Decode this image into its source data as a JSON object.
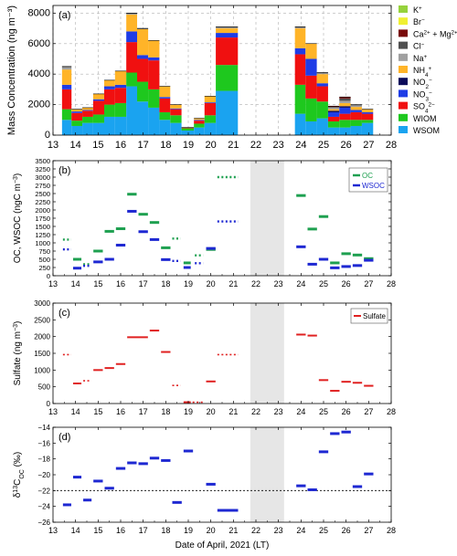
{
  "chart_data": [
    {
      "panel": "(a)",
      "type": "bar",
      "stacked": true,
      "ylabel": "Mass Concentration (ng m⁻³)",
      "ylim": [
        0,
        8500
      ],
      "yticks": [
        0,
        2000,
        4000,
        6000,
        8000
      ],
      "xlim": [
        13,
        28
      ],
      "xticks": [
        13,
        14,
        15,
        16,
        17,
        18,
        19,
        20,
        21,
        22,
        23,
        24,
        25,
        26,
        27,
        28
      ],
      "grid": true,
      "legend": [
        "K⁺",
        "Br⁻",
        "Ca²⁺ + Mg²⁺",
        "Cl⁻",
        "Na⁺",
        "NH₄⁺",
        "NO₂⁻",
        "NO₃⁻",
        "SO₄²⁻",
        "WIOM",
        "WSOM"
      ],
      "colors": {
        "WSOM": "#1aa3f0",
        "WIOM": "#1ec81e",
        "SO4": "#f01010",
        "NO3": "#1e3ce6",
        "NO2": "#0a0a5a",
        "NH4": "#ffb428",
        "Na": "#a0a0a0",
        "Cl": "#505050",
        "CaMg": "#780a0a",
        "Br": "#f0f032",
        "K": "#96d23c"
      },
      "bars": [
        {
          "x0": 13.4,
          "x1": 13.82,
          "WSOM": 1000,
          "WIOM": 700,
          "SO4": 1300,
          "NO3": 300,
          "NO2": 0,
          "NH4": 1000,
          "Na": 150,
          "Cl": 50,
          "CaMg": 0,
          "Br": 0,
          "K": 0
        },
        {
          "x0": 13.82,
          "x1": 14.3,
          "WSOM": 600,
          "WIOM": 350,
          "SO4": 500,
          "NO3": 100,
          "NO2": 0,
          "NH4": 150,
          "Na": 0,
          "Cl": 0,
          "CaMg": 0,
          "Br": 0,
          "K": 0
        },
        {
          "x0": 14.3,
          "x1": 14.78,
          "WSOM": 800,
          "WIOM": 400,
          "SO4": 400,
          "NO3": 50,
          "NO2": 0,
          "NH4": 150,
          "Na": 0,
          "Cl": 0,
          "CaMg": 0,
          "Br": 0,
          "K": 0
        },
        {
          "x0": 14.78,
          "x1": 15.27,
          "WSOM": 800,
          "WIOM": 550,
          "SO4": 900,
          "NO3": 100,
          "NO2": 0,
          "NH4": 350,
          "Na": 0,
          "Cl": 0,
          "CaMg": 0,
          "Br": 0,
          "K": 0
        },
        {
          "x0": 15.27,
          "x1": 15.75,
          "WSOM": 1200,
          "WIOM": 800,
          "SO4": 1000,
          "NO3": 200,
          "NO2": 0,
          "NH4": 400,
          "Na": 0,
          "Cl": 0,
          "CaMg": 0,
          "Br": 0,
          "K": 0
        },
        {
          "x0": 15.75,
          "x1": 16.25,
          "WSOM": 1200,
          "WIOM": 900,
          "SO4": 1000,
          "NO3": 200,
          "NO2": 0,
          "NH4": 900,
          "Na": 0,
          "Cl": 0,
          "CaMg": 0,
          "Br": 0,
          "K": 0
        },
        {
          "x0": 16.25,
          "x1": 16.73,
          "WSOM": 3200,
          "WIOM": 900,
          "SO4": 2000,
          "NO3": 700,
          "NO2": 0,
          "NH4": 1100,
          "Na": 50,
          "Cl": 50,
          "CaMg": 0,
          "Br": 0,
          "K": 0
        },
        {
          "x0": 16.73,
          "x1": 17.22,
          "WSOM": 2200,
          "WIOM": 1300,
          "SO4": 1500,
          "NO3": 250,
          "NO2": 0,
          "NH4": 1700,
          "Na": 0,
          "Cl": 50,
          "CaMg": 0,
          "Br": 0,
          "K": 0
        },
        {
          "x0": 17.22,
          "x1": 17.72,
          "WSOM": 1800,
          "WIOM": 1200,
          "SO4": 1900,
          "NO3": 200,
          "NO2": 0,
          "NH4": 1100,
          "Na": 0,
          "Cl": 0,
          "CaMg": 0,
          "Br": 0,
          "K": 0
        },
        {
          "x0": 17.72,
          "x1": 18.2,
          "WSOM": 1000,
          "WIOM": 500,
          "SO4": 900,
          "NO3": 100,
          "NO2": 0,
          "NH4": 700,
          "Na": 0,
          "Cl": 0,
          "CaMg": 0,
          "Br": 0,
          "K": 0
        },
        {
          "x0": 18.2,
          "x1": 18.7,
          "WSOM": 800,
          "WIOM": 500,
          "SO4": 400,
          "NO3": 50,
          "NO2": 0,
          "NH4": 250,
          "Na": 0,
          "Cl": 0,
          "CaMg": 0,
          "Br": 0,
          "K": 0
        },
        {
          "x0": 18.7,
          "x1": 19.25,
          "WSOM": 300,
          "WIOM": 150,
          "SO4": 50,
          "NO3": 0,
          "NO2": 0,
          "NH4": 0,
          "Na": 0,
          "Cl": 0,
          "CaMg": 0,
          "Br": 0,
          "K": 0
        },
        {
          "x0": 19.25,
          "x1": 19.72,
          "WSOM": 500,
          "WIOM": 250,
          "SO4": 200,
          "NO3": 50,
          "NO2": 0,
          "NH4": 100,
          "Na": 0,
          "Cl": 0,
          "CaMg": 0,
          "Br": 0,
          "K": 0
        },
        {
          "x0": 19.72,
          "x1": 20.22,
          "WSOM": 800,
          "WIOM": 500,
          "SO4": 800,
          "NO3": 50,
          "NO2": 0,
          "NH4": 400,
          "Na": 0,
          "Cl": 0,
          "CaMg": 0,
          "Br": 0,
          "K": 0
        },
        {
          "x0": 20.22,
          "x1": 21.2,
          "WSOM": 2900,
          "WIOM": 1700,
          "SO4": 1800,
          "NO3": 300,
          "NO2": 0,
          "NH4": 300,
          "Na": 50,
          "Cl": 50,
          "CaMg": 0,
          "Br": 0,
          "K": 0
        },
        {
          "x0": 23.73,
          "x1": 24.2,
          "WSOM": 1400,
          "WIOM": 1900,
          "SO4": 2000,
          "NO3": 400,
          "NO2": 0,
          "NH4": 1300,
          "Na": 50,
          "Cl": 50,
          "CaMg": 0,
          "Br": 0,
          "K": 0
        },
        {
          "x0": 24.2,
          "x1": 24.7,
          "WSOM": 900,
          "WIOM": 1500,
          "SO4": 1500,
          "NO3": 1100,
          "NO2": 0,
          "NH4": 1000,
          "Na": 0,
          "Cl": 0,
          "CaMg": 0,
          "Br": 0,
          "K": 0
        },
        {
          "x0": 24.7,
          "x1": 25.2,
          "WSOM": 1100,
          "WIOM": 1100,
          "SO4": 1000,
          "NO3": 200,
          "NO2": 0,
          "NH4": 600,
          "Na": 50,
          "Cl": 50,
          "CaMg": 0,
          "Br": 0,
          "K": 0
        },
        {
          "x0": 25.2,
          "x1": 25.7,
          "WSOM": 500,
          "WIOM": 400,
          "SO4": 300,
          "NO3": 300,
          "NO2": 100,
          "NH4": 100,
          "Na": 100,
          "Cl": 50,
          "CaMg": 50,
          "Br": 0,
          "K": 0
        },
        {
          "x0": 25.7,
          "x1": 26.2,
          "WSOM": 500,
          "WIOM": 500,
          "SO4": 400,
          "NO3": 400,
          "NO2": 100,
          "NH4": 200,
          "Na": 150,
          "Cl": 150,
          "CaMg": 100,
          "Br": 0,
          "K": 0
        },
        {
          "x0": 26.2,
          "x1": 26.7,
          "WSOM": 600,
          "WIOM": 400,
          "SO4": 500,
          "NO3": 150,
          "NO2": 0,
          "NH4": 200,
          "Na": 100,
          "Cl": 50,
          "CaMg": 0,
          "Br": 0,
          "K": 0
        },
        {
          "x0": 26.7,
          "x1": 27.2,
          "WSOM": 800,
          "WIOM": 200,
          "SO4": 400,
          "NO3": 100,
          "NO2": 0,
          "NH4": 200,
          "Na": 0,
          "Cl": 0,
          "CaMg": 0,
          "Br": 0,
          "K": 0
        }
      ]
    },
    {
      "panel": "(b)",
      "type": "line",
      "ylabel": "OC, WSOC (ngC m⁻³)",
      "ylim": [
        0,
        3500
      ],
      "yticks": [
        0,
        250,
        500,
        750,
        1000,
        1250,
        1500,
        1750,
        2000,
        2250,
        2500,
        2750,
        3000,
        3250,
        3500
      ],
      "xlim": [
        13,
        28
      ],
      "xticks": [
        13,
        14,
        15,
        16,
        17,
        18,
        19,
        20,
        21,
        22,
        23,
        24,
        25,
        26,
        27,
        28
      ],
      "legend_position": "top-right",
      "shade": [
        21.75,
        23.25
      ],
      "series": [
        {
          "name": "OC",
          "color": "#1ea050",
          "segments": [
            {
              "x0": 13.4,
              "x1": 13.85,
              "y": 1100,
              "dashed": true
            },
            {
              "x0": 13.85,
              "x1": 14.3,
              "y": 500
            },
            {
              "x0": 14.3,
              "x1": 14.7,
              "y": 350,
              "dashed": true
            },
            {
              "x0": 14.75,
              "x1": 15.25,
              "y": 750
            },
            {
              "x0": 15.25,
              "x1": 15.75,
              "y": 1350
            },
            {
              "x0": 15.75,
              "x1": 16.25,
              "y": 1430
            },
            {
              "x0": 16.25,
              "x1": 16.75,
              "y": 2480
            },
            {
              "x0": 16.75,
              "x1": 17.25,
              "y": 1870
            },
            {
              "x0": 17.25,
              "x1": 17.75,
              "y": 1620
            },
            {
              "x0": 17.75,
              "x1": 18.25,
              "y": 850
            },
            {
              "x0": 18.25,
              "x1": 18.7,
              "y": 1130,
              "dashed": true
            },
            {
              "x0": 18.75,
              "x1": 19.15,
              "y": 390
            },
            {
              "x0": 19.25,
              "x1": 19.7,
              "y": 620,
              "dashed": true
            },
            {
              "x0": 19.75,
              "x1": 20.25,
              "y": 800
            },
            {
              "x0": 20.25,
              "x1": 21.25,
              "y": 3000,
              "dashed": true
            },
            {
              "x0": 23.75,
              "x1": 24.25,
              "y": 2440
            },
            {
              "x0": 24.25,
              "x1": 24.75,
              "y": 1420
            },
            {
              "x0": 24.75,
              "x1": 25.25,
              "y": 1800
            },
            {
              "x0": 25.25,
              "x1": 25.75,
              "y": 390
            },
            {
              "x0": 25.75,
              "x1": 26.25,
              "y": 670
            },
            {
              "x0": 26.25,
              "x1": 26.75,
              "y": 630
            },
            {
              "x0": 26.75,
              "x1": 27.25,
              "y": 520
            }
          ]
        },
        {
          "name": "WSOC",
          "color": "#1e28d2",
          "segments": [
            {
              "x0": 13.4,
              "x1": 13.85,
              "y": 800,
              "dashed": true
            },
            {
              "x0": 13.85,
              "x1": 14.3,
              "y": 230
            },
            {
              "x0": 14.3,
              "x1": 14.7,
              "y": 300,
              "dashed": true
            },
            {
              "x0": 14.75,
              "x1": 15.25,
              "y": 420
            },
            {
              "x0": 15.25,
              "x1": 15.75,
              "y": 500
            },
            {
              "x0": 15.75,
              "x1": 16.25,
              "y": 930
            },
            {
              "x0": 16.25,
              "x1": 16.75,
              "y": 1960
            },
            {
              "x0": 16.75,
              "x1": 17.25,
              "y": 1340
            },
            {
              "x0": 17.25,
              "x1": 17.75,
              "y": 1100
            },
            {
              "x0": 17.75,
              "x1": 18.25,
              "y": 490
            },
            {
              "x0": 18.25,
              "x1": 18.7,
              "y": 450,
              "dashed": true
            },
            {
              "x0": 18.75,
              "x1": 19.15,
              "y": 250
            },
            {
              "x0": 19.25,
              "x1": 19.7,
              "y": 380,
              "dashed": true
            },
            {
              "x0": 19.75,
              "x1": 20.25,
              "y": 830
            },
            {
              "x0": 20.25,
              "x1": 21.25,
              "y": 1650,
              "dashed": true
            },
            {
              "x0": 23.75,
              "x1": 24.25,
              "y": 880
            },
            {
              "x0": 24.25,
              "x1": 24.75,
              "y": 350
            },
            {
              "x0": 24.75,
              "x1": 25.25,
              "y": 500
            },
            {
              "x0": 25.25,
              "x1": 25.75,
              "y": 240
            },
            {
              "x0": 25.75,
              "x1": 26.25,
              "y": 280
            },
            {
              "x0": 26.25,
              "x1": 26.75,
              "y": 310
            },
            {
              "x0": 26.75,
              "x1": 27.25,
              "y": 470
            }
          ]
        }
      ]
    },
    {
      "panel": "(c)",
      "type": "line",
      "ylabel": "Sulfate (ng m⁻³)",
      "ylim": [
        0,
        3000
      ],
      "yticks": [
        0,
        500,
        1000,
        1500,
        2000,
        2500,
        3000
      ],
      "xlim": [
        13,
        28
      ],
      "xticks": [
        13,
        14,
        15,
        16,
        17,
        18,
        19,
        20,
        21,
        22,
        23,
        24,
        25,
        26,
        27,
        28
      ],
      "legend_position": "top-right",
      "shade": [
        21.75,
        23.25
      ],
      "series": [
        {
          "name": "Sulfate",
          "color": "#e02020",
          "segments": [
            {
              "x0": 13.4,
              "x1": 13.85,
              "y": 1460,
              "dashed": true
            },
            {
              "x0": 13.85,
              "x1": 14.3,
              "y": 600
            },
            {
              "x0": 14.3,
              "x1": 14.7,
              "y": 680,
              "dashed": true
            },
            {
              "x0": 14.75,
              "x1": 15.25,
              "y": 1000
            },
            {
              "x0": 15.25,
              "x1": 15.75,
              "y": 1060
            },
            {
              "x0": 15.75,
              "x1": 16.25,
              "y": 1180
            },
            {
              "x0": 16.25,
              "x1": 17.25,
              "y": 1980
            },
            {
              "x0": 17.25,
              "x1": 17.75,
              "y": 2180
            },
            {
              "x0": 17.75,
              "x1": 18.25,
              "y": 1540
            },
            {
              "x0": 18.25,
              "x1": 18.7,
              "y": 540,
              "dashed": true
            },
            {
              "x0": 18.75,
              "x1": 19.15,
              "y": 40
            },
            {
              "x0": 19.15,
              "x1": 19.7,
              "y": 40,
              "dashed": true
            },
            {
              "x0": 19.75,
              "x1": 20.25,
              "y": 660
            },
            {
              "x0": 20.25,
              "x1": 21.25,
              "y": 1460,
              "dashed": true
            },
            {
              "x0": 23.75,
              "x1": 24.25,
              "y": 2060
            },
            {
              "x0": 24.25,
              "x1": 24.75,
              "y": 2030
            },
            {
              "x0": 24.75,
              "x1": 25.25,
              "y": 700
            },
            {
              "x0": 25.25,
              "x1": 25.75,
              "y": 380
            },
            {
              "x0": 25.75,
              "x1": 26.25,
              "y": 650
            },
            {
              "x0": 26.25,
              "x1": 26.75,
              "y": 620
            },
            {
              "x0": 26.75,
              "x1": 27.25,
              "y": 530
            }
          ]
        }
      ]
    },
    {
      "panel": "(d)",
      "type": "line",
      "ylabel": "δ¹³C_OC (‰)",
      "ylim": [
        -26,
        -14
      ],
      "yticks": [
        -26,
        -24,
        -22,
        -20,
        -18,
        -16,
        -14
      ],
      "xlim": [
        13,
        28
      ],
      "xticks": [
        13,
        14,
        15,
        16,
        17,
        18,
        19,
        20,
        21,
        22,
        23,
        24,
        25,
        26,
        27,
        28
      ],
      "xlabel": "Date of April, 2021 (LT)",
      "shade": [
        21.75,
        23.25
      ],
      "reference_line": -22.0,
      "series": [
        {
          "name": "",
          "color": "#1e28d2",
          "segments": [
            {
              "x0": 13.4,
              "x1": 13.85,
              "y": -23.8
            },
            {
              "x0": 13.85,
              "x1": 14.3,
              "y": -20.3
            },
            {
              "x0": 14.3,
              "x1": 14.75,
              "y": -23.2
            },
            {
              "x0": 14.75,
              "x1": 15.25,
              "y": -20.8
            },
            {
              "x0": 15.25,
              "x1": 15.75,
              "y": -21.7
            },
            {
              "x0": 15.75,
              "x1": 16.25,
              "y": -19.2
            },
            {
              "x0": 16.25,
              "x1": 16.75,
              "y": -18.5
            },
            {
              "x0": 16.75,
              "x1": 17.25,
              "y": -18.6
            },
            {
              "x0": 17.25,
              "x1": 17.75,
              "y": -17.9
            },
            {
              "x0": 17.75,
              "x1": 18.25,
              "y": -18.2
            },
            {
              "x0": 18.25,
              "x1": 18.75,
              "y": -23.5
            },
            {
              "x0": 18.75,
              "x1": 19.25,
              "y": -17.0
            },
            {
              "x0": 19.75,
              "x1": 20.25,
              "y": -21.2
            },
            {
              "x0": 20.25,
              "x1": 21.25,
              "y": -24.5
            },
            {
              "x0": 23.75,
              "x1": 24.25,
              "y": -21.4
            },
            {
              "x0": 24.25,
              "x1": 24.75,
              "y": -21.9
            },
            {
              "x0": 24.75,
              "x1": 25.25,
              "y": -17.1
            },
            {
              "x0": 25.25,
              "x1": 25.75,
              "y": -14.8
            },
            {
              "x0": 25.75,
              "x1": 26.25,
              "y": -14.6
            },
            {
              "x0": 26.25,
              "x1": 26.75,
              "y": -21.5
            },
            {
              "x0": 26.75,
              "x1": 27.25,
              "y": -19.9
            }
          ]
        }
      ]
    }
  ]
}
